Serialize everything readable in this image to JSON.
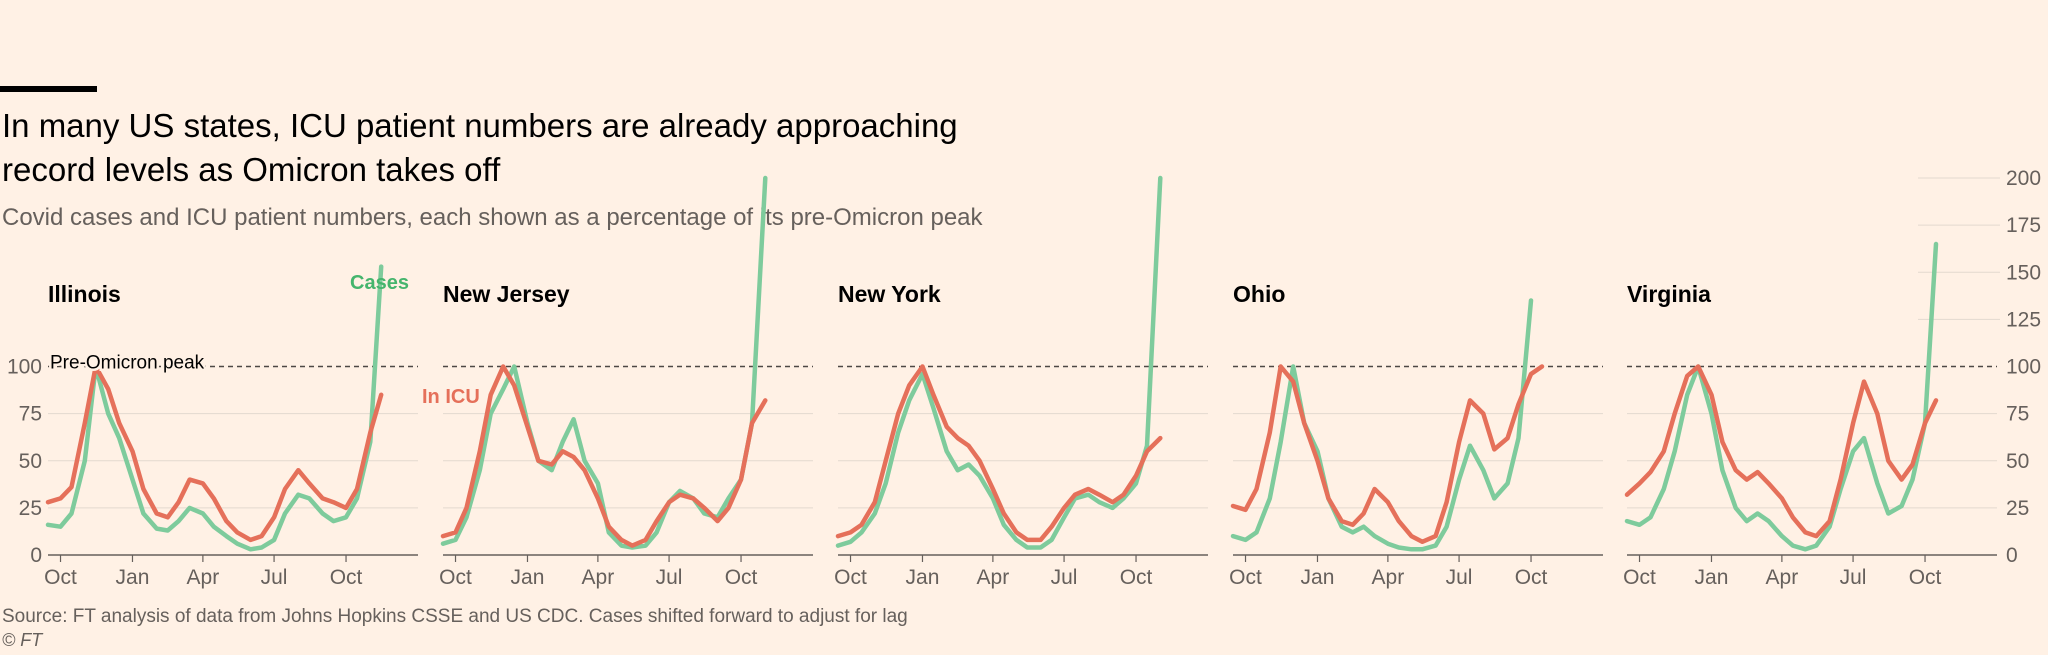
{
  "header": {
    "title": "In many US states, ICU patient numbers are already approaching record levels as Omicron takes off",
    "subtitle": "Covid cases and ICU patient numbers, each shown as a percentage of its pre-Omicron peak"
  },
  "footer": {
    "source": "Source: FT analysis of data from Johns Hopkins CSSE and US CDC. Cases shifted forward to adjust for lag",
    "credit": "© FT"
  },
  "colors": {
    "cases": "#7ecb9c",
    "icu": "#e5705a",
    "cases_label": "#45b56d",
    "grid": "#e3d9cf",
    "axis_text": "#66605c"
  },
  "chart_data": {
    "type": "line",
    "ylim": [
      0,
      200
    ],
    "y_ticks": [
      0,
      25,
      50,
      75,
      100,
      125,
      150,
      175,
      200
    ],
    "x_ticks": [
      "Oct",
      "Jan",
      "Apr",
      "Jul",
      "Oct"
    ],
    "reference_line": {
      "value": 100,
      "label": "Pre-Omicron peak"
    },
    "series_labels": {
      "cases": "Cases",
      "icu": "In ICU"
    },
    "x": [
      "2020-09-15",
      "2020-10-01",
      "2020-10-15",
      "2020-11-01",
      "2020-11-15",
      "2020-12-01",
      "2020-12-15",
      "2021-01-01",
      "2021-01-15",
      "2021-02-01",
      "2021-02-15",
      "2021-03-01",
      "2021-03-15",
      "2021-04-01",
      "2021-04-15",
      "2021-05-01",
      "2021-05-15",
      "2021-06-01",
      "2021-06-15",
      "2021-07-01",
      "2021-07-15",
      "2021-08-01",
      "2021-08-15",
      "2021-09-01",
      "2021-09-15",
      "2021-10-01",
      "2021-10-15",
      "2021-11-01",
      "2021-11-15",
      "2021-12-01",
      "2021-12-15",
      "2022-01-01"
    ],
    "panels": [
      {
        "state": "Illinois",
        "cases": [
          16,
          15,
          22,
          50,
          100,
          75,
          62,
          40,
          22,
          14,
          13,
          18,
          25,
          22,
          15,
          10,
          6,
          3,
          4,
          8,
          22,
          32,
          30,
          22,
          18,
          20,
          30,
          60,
          153,
          null,
          null,
          null
        ],
        "icu": [
          28,
          30,
          36,
          70,
          100,
          88,
          70,
          55,
          35,
          22,
          20,
          28,
          40,
          38,
          30,
          18,
          12,
          8,
          10,
          20,
          35,
          45,
          38,
          30,
          28,
          25,
          35,
          65,
          85,
          null,
          null,
          null
        ]
      },
      {
        "state": "New Jersey",
        "cases": [
          6,
          8,
          20,
          45,
          75,
          88,
          100,
          70,
          50,
          45,
          60,
          72,
          50,
          38,
          12,
          5,
          4,
          5,
          12,
          28,
          34,
          30,
          22,
          20,
          30,
          40,
          70,
          200,
          null,
          null,
          null,
          null
        ],
        "icu": [
          10,
          12,
          25,
          55,
          85,
          100,
          90,
          68,
          50,
          48,
          55,
          52,
          45,
          30,
          15,
          8,
          5,
          8,
          18,
          28,
          32,
          30,
          25,
          18,
          25,
          40,
          70,
          82,
          null,
          null,
          null,
          null
        ]
      },
      {
        "state": "New York",
        "cases": [
          5,
          7,
          12,
          22,
          38,
          65,
          82,
          96,
          78,
          55,
          45,
          48,
          42,
          30,
          16,
          8,
          4,
          4,
          8,
          20,
          30,
          32,
          28,
          25,
          30,
          38,
          58,
          200,
          null,
          null,
          null,
          null
        ],
        "icu": [
          10,
          12,
          16,
          28,
          50,
          75,
          90,
          100,
          85,
          68,
          62,
          58,
          50,
          35,
          22,
          12,
          8,
          8,
          15,
          25,
          32,
          35,
          32,
          28,
          32,
          42,
          55,
          62,
          null,
          null,
          null,
          null
        ]
      },
      {
        "state": "Ohio",
        "cases": [
          10,
          8,
          12,
          30,
          60,
          100,
          70,
          55,
          30,
          15,
          12,
          15,
          10,
          6,
          4,
          3,
          3,
          5,
          15,
          40,
          58,
          45,
          30,
          38,
          62,
          135,
          null,
          null,
          null,
          null,
          null,
          null
        ],
        "icu": [
          26,
          24,
          35,
          65,
          100,
          92,
          70,
          50,
          30,
          18,
          16,
          22,
          35,
          28,
          18,
          10,
          7,
          10,
          28,
          60,
          82,
          75,
          56,
          62,
          80,
          96,
          100,
          null,
          null,
          null,
          null,
          null
        ]
      },
      {
        "state": "Virginia",
        "cases": [
          18,
          16,
          20,
          35,
          55,
          85,
          100,
          75,
          45,
          25,
          18,
          22,
          18,
          10,
          5,
          3,
          5,
          15,
          35,
          55,
          62,
          38,
          22,
          26,
          40,
          70,
          165,
          null,
          null,
          null,
          null,
          null
        ],
        "icu": [
          32,
          38,
          44,
          55,
          75,
          95,
          100,
          85,
          60,
          45,
          40,
          44,
          38,
          30,
          20,
          12,
          10,
          18,
          40,
          70,
          92,
          75,
          50,
          40,
          48,
          70,
          82,
          null,
          null,
          null,
          null,
          null
        ]
      }
    ]
  }
}
